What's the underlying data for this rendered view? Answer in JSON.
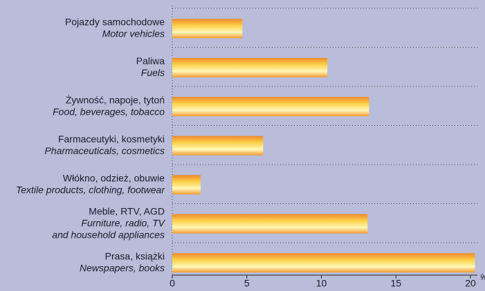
{
  "chart_data": {
    "type": "barh",
    "categories": [
      [
        "Pojazdy samochodowe",
        "Motor vehicles"
      ],
      [
        "Paliwa",
        "Fuels"
      ],
      [
        "Żywność, napoje, tytoń",
        "Food, beverages, tobacco"
      ],
      [
        "Farmaceutyki, kosmetyki",
        "Pharmaceuticals, cosmetics"
      ],
      [
        "Włókno, odzież, obuwie",
        "Textile products, clothing, footwear"
      ],
      [
        "Meble, RTV, AGD",
        "Furniture, radio, TV",
        "and household appliances"
      ],
      [
        "Prasa, książki",
        "Newspapers, books"
      ]
    ],
    "values": [
      4.7,
      10.4,
      13.2,
      6.1,
      1.9,
      13.1,
      20.3
    ],
    "xlim": [
      0,
      20
    ],
    "xticks": [
      0,
      5,
      10,
      15,
      20
    ],
    "xlabel": "%"
  }
}
